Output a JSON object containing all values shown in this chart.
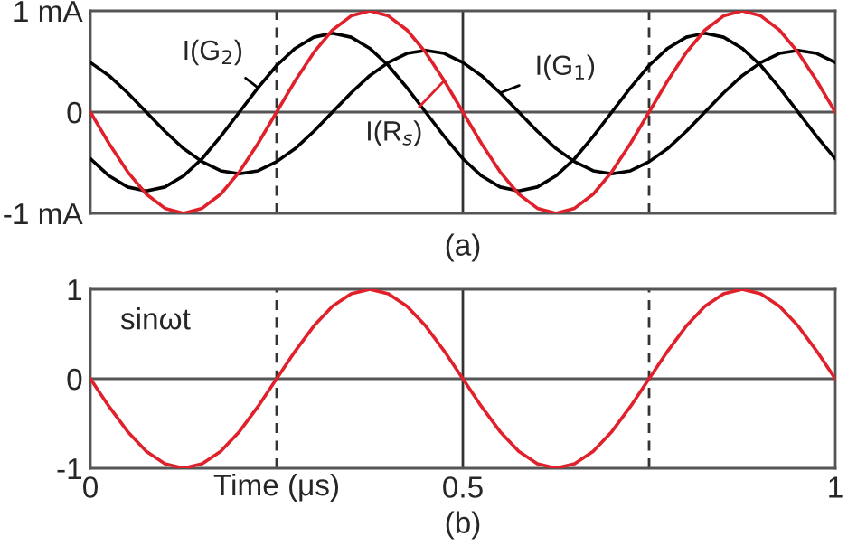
{
  "chart_data": [
    {
      "type": "line",
      "x": [
        0,
        0.025,
        0.05,
        0.075,
        0.1,
        0.125,
        0.15,
        0.175,
        0.2,
        0.225,
        0.25,
        0.275,
        0.3,
        0.325,
        0.35,
        0.375,
        0.4,
        0.425,
        0.45,
        0.475,
        0.5,
        0.525,
        0.55,
        0.575,
        0.6,
        0.625,
        0.65,
        0.675,
        0.7,
        0.725,
        0.75,
        0.775,
        0.8,
        0.825,
        0.85,
        0.875,
        0.9,
        0.925,
        0.95,
        0.975,
        1
      ],
      "series": [
        {
          "name": "I(G$_{2}$)",
          "color": "#000000",
          "values": [
            -0.46,
            -0.63,
            -0.74,
            -0.78,
            -0.74,
            -0.63,
            -0.46,
            -0.24,
            0,
            0.24,
            0.46,
            0.63,
            0.74,
            0.78,
            0.74,
            0.63,
            0.46,
            0.24,
            0,
            -0.24,
            -0.46,
            -0.63,
            -0.74,
            -0.78,
            -0.74,
            -0.63,
            -0.46,
            -0.24,
            0,
            0.24,
            0.46,
            0.63,
            0.74,
            0.78,
            0.74,
            0.63,
            0.46,
            0.24,
            0,
            -0.24,
            -0.46
          ]
        },
        {
          "name": "I(G$_{1}$)",
          "color": "#000000",
          "values": [
            0.49,
            0.36,
            0.19,
            0,
            -0.19,
            -0.36,
            -0.49,
            -0.58,
            -0.61,
            -0.58,
            -0.49,
            -0.36,
            -0.19,
            0,
            0.19,
            0.36,
            0.49,
            0.58,
            0.61,
            0.58,
            0.49,
            0.36,
            0.19,
            0,
            -0.19,
            -0.36,
            -0.49,
            -0.58,
            -0.61,
            -0.58,
            -0.49,
            -0.36,
            -0.19,
            0,
            0.19,
            0.36,
            0.49,
            0.58,
            0.61,
            0.58,
            0.49
          ]
        },
        {
          "name": "I(R$_{s}$)",
          "color": "#e0202a",
          "values": [
            0,
            -0.31,
            -0.59,
            -0.81,
            -0.95,
            -1,
            -0.95,
            -0.81,
            -0.59,
            -0.31,
            0,
            0.31,
            0.59,
            0.81,
            0.95,
            1,
            0.95,
            0.81,
            0.59,
            0.31,
            0,
            -0.31,
            -0.59,
            -0.81,
            -0.95,
            -1,
            -0.95,
            -0.81,
            -0.59,
            -0.31,
            0,
            0.31,
            0.59,
            0.81,
            0.95,
            1,
            0.95,
            0.81,
            0.59,
            0.31,
            0
          ]
        }
      ],
      "xlim": [
        0,
        1
      ],
      "ylim": [
        -1,
        1
      ],
      "yticks": [
        {
          "value": 1,
          "label": "1 mA"
        },
        0,
        {
          "value": -1,
          "label": "-1 mA"
        }
      ],
      "tick_labels": "y",
      "ref_lines": [
        {
          "axis": "y",
          "value": 0,
          "color": "#555555",
          "line_style": "solid"
        },
        {
          "axis": "x",
          "value": 0.25,
          "color": "#333333",
          "line_style": "dashed"
        },
        {
          "axis": "x",
          "value": 0.5,
          "color": "#333333",
          "line_style": "solid"
        },
        {
          "axis": "x",
          "value": 0.75,
          "color": "#333333",
          "line_style": "dashed"
        }
      ],
      "annotations": [
        "(a)"
      ]
    },
    {
      "type": "line",
      "x": [
        0,
        0.025,
        0.05,
        0.075,
        0.1,
        0.125,
        0.15,
        0.175,
        0.2,
        0.225,
        0.25,
        0.275,
        0.3,
        0.325,
        0.35,
        0.375,
        0.4,
        0.425,
        0.45,
        0.475,
        0.5,
        0.525,
        0.55,
        0.575,
        0.6,
        0.625,
        0.65,
        0.675,
        0.7,
        0.725,
        0.75,
        0.775,
        0.8,
        0.825,
        0.85,
        0.875,
        0.9,
        0.925,
        0.95,
        0.975,
        1
      ],
      "series": [
        {
          "color": "#e0202a",
          "values": [
            0,
            -0.31,
            -0.59,
            -0.81,
            -0.95,
            -1,
            -0.95,
            -0.81,
            -0.59,
            -0.31,
            0,
            0.31,
            0.59,
            0.81,
            0.95,
            1,
            0.95,
            0.81,
            0.59,
            0.31,
            0,
            -0.31,
            -0.59,
            -0.81,
            -0.95,
            -1,
            -0.95,
            -0.81,
            -0.59,
            -0.31,
            0,
            0.31,
            0.59,
            0.81,
            0.95,
            1,
            0.95,
            0.81,
            0.59,
            0.31,
            0
          ]
        }
      ],
      "xlim": [
        0,
        1
      ],
      "ylim": [
        -1,
        1
      ],
      "xticks": [
        0,
        0.5,
        1
      ],
      "yticks": [
        1,
        0,
        -1
      ],
      "xlabel": "Time (μs)",
      "ref_lines": [
        {
          "axis": "y",
          "value": 0,
          "color": "#555555",
          "line_style": "solid"
        },
        {
          "axis": "x",
          "value": 0.25,
          "color": "#333333",
          "line_style": "dashed"
        },
        {
          "axis": "x",
          "value": 0.5,
          "color": "#333333",
          "line_style": "solid"
        },
        {
          "axis": "x",
          "value": 0.75,
          "color": "#333333",
          "line_style": "dashed"
        }
      ],
      "annotations": [
        "sinωt",
        "(b)"
      ]
    }
  ]
}
